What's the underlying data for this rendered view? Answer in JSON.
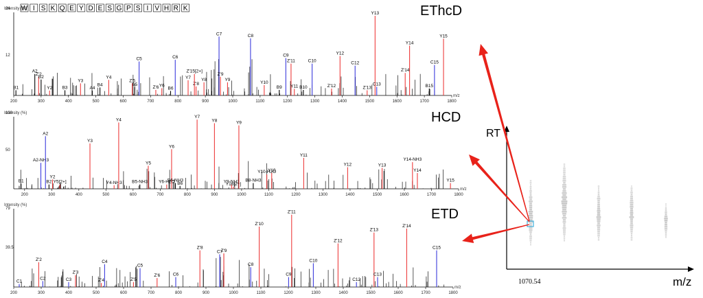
{
  "chart_data": [
    {
      "type": "bar",
      "title": "EThcD",
      "sequence": [
        "W",
        "I",
        "S",
        "K",
        "Q",
        "E",
        "Y",
        "D",
        "E",
        "S",
        "G",
        "P",
        "S",
        "I",
        "V",
        "H",
        "R",
        "K"
      ],
      "ylabel": "Intensity (%)",
      "xlabel": "m/z",
      "ytick_labels": [
        "24",
        "12"
      ],
      "xlim": [
        200,
        1800
      ],
      "ylim": [
        0,
        24
      ],
      "xticks": [
        200,
        300,
        400,
        500,
        600,
        700,
        800,
        900,
        1000,
        1100,
        1200,
        1300,
        1400,
        1500,
        1600,
        1700,
        1800
      ],
      "labeled_peaks": [
        {
          "label": "b1",
          "mz": 208,
          "y": 1.5,
          "color": "black"
        },
        {
          "label": "a2",
          "mz": 277,
          "y": 6.2,
          "color": "black"
        },
        {
          "label": "z'2",
          "mz": 291,
          "y": 5.4,
          "color": "red"
        },
        {
          "label": "b2",
          "mz": 300,
          "y": 4.6,
          "color": "black"
        },
        {
          "label": "y2",
          "mz": 331,
          "y": 1.4,
          "color": "red"
        },
        {
          "label": "b3",
          "mz": 387,
          "y": 1.5,
          "color": "black"
        },
        {
          "label": "y3",
          "mz": 444,
          "y": 3.5,
          "color": "red"
        },
        {
          "label": "a4",
          "mz": 487,
          "y": 1.4,
          "color": "black"
        },
        {
          "label": "b4",
          "mz": 515,
          "y": 2.3,
          "color": "black"
        },
        {
          "label": "y4",
          "mz": 547,
          "y": 4.5,
          "color": "red"
        },
        {
          "label": "b5",
          "mz": 642,
          "y": 2.4,
          "color": "black"
        },
        {
          "label": "z'5",
          "mz": 633,
          "y": 3.5,
          "color": "red"
        },
        {
          "label": "c5",
          "mz": 658,
          "y": 9.8,
          "color": "blue"
        },
        {
          "label": "z'6",
          "mz": 719,
          "y": 1.6,
          "color": "red"
        },
        {
          "label": "y6",
          "mz": 741,
          "y": 2.1,
          "color": "red"
        },
        {
          "label": "b6",
          "mz": 773,
          "y": 1.3,
          "color": "black"
        },
        {
          "label": "c6",
          "mz": 790,
          "y": 10.3,
          "color": "blue"
        },
        {
          "label": "y7",
          "mz": 837,
          "y": 4.4,
          "color": "red"
        },
        {
          "label": "z'8",
          "mz": 866,
          "y": 2.6,
          "color": "red"
        },
        {
          "label": "z'15[2+]",
          "mz": 860,
          "y": 6.2,
          "color": "red"
        },
        {
          "label": "y8",
          "mz": 895,
          "y": 3.8,
          "color": "red"
        },
        {
          "label": "c7",
          "mz": 950,
          "y": 17.0,
          "color": "blue"
        },
        {
          "label": "z'9",
          "mz": 955,
          "y": 5.4,
          "color": "red"
        },
        {
          "label": "y9",
          "mz": 981,
          "y": 3.8,
          "color": "red"
        },
        {
          "label": "c8",
          "mz": 1065,
          "y": 16.5,
          "color": "blue"
        },
        {
          "label": "y10",
          "mz": 1115,
          "y": 3.0,
          "color": "red"
        },
        {
          "label": "b9",
          "mz": 1170,
          "y": 1.6,
          "color": "black"
        },
        {
          "label": "c9",
          "mz": 1194,
          "y": 10.8,
          "color": "blue"
        },
        {
          "label": "z'11",
          "mz": 1213,
          "y": 9.2,
          "color": "red"
        },
        {
          "label": "y11",
          "mz": 1225,
          "y": 1.9,
          "color": "red"
        },
        {
          "label": "b10",
          "mz": 1258,
          "y": 1.6,
          "color": "black"
        },
        {
          "label": "c10",
          "mz": 1290,
          "y": 9.2,
          "color": "blue"
        },
        {
          "label": "z'12",
          "mz": 1361,
          "y": 2.0,
          "color": "red"
        },
        {
          "label": "y12",
          "mz": 1392,
          "y": 11.4,
          "color": "red"
        },
        {
          "label": "c12",
          "mz": 1447,
          "y": 8.6,
          "color": "blue"
        },
        {
          "label": "z'13",
          "mz": 1491,
          "y": 1.5,
          "color": "red"
        },
        {
          "label": "y13",
          "mz": 1520,
          "y": 23.0,
          "color": "red"
        },
        {
          "label": "c13",
          "mz": 1526,
          "y": 2.5,
          "color": "blue"
        },
        {
          "label": "z'14",
          "mz": 1630,
          "y": 6.5,
          "color": "red"
        },
        {
          "label": "y14",
          "mz": 1646,
          "y": 14.4,
          "color": "red"
        },
        {
          "label": "b15",
          "mz": 1718,
          "y": 2.0,
          "color": "black"
        },
        {
          "label": "c15",
          "mz": 1737,
          "y": 8.8,
          "color": "blue"
        },
        {
          "label": "y15",
          "mz": 1770,
          "y": 16.4,
          "color": "red"
        }
      ]
    },
    {
      "type": "bar",
      "title": "HCD",
      "ylabel": "Intensity (%)",
      "xlabel": "m/z",
      "ytick_labels": [
        "100",
        "50"
      ],
      "xlim": [
        160,
        1800
      ],
      "ylim": [
        0,
        100
      ],
      "xticks": [
        200,
        300,
        400,
        500,
        600,
        700,
        800,
        900,
        1000,
        1100,
        1200,
        1300,
        1400,
        1500,
        1600,
        1700,
        1800
      ],
      "labeled_peaks": [
        {
          "label": "b1",
          "mz": 187,
          "y": 7,
          "color": "black"
        },
        {
          "label": "a2-NH3",
          "mz": 260,
          "y": 36,
          "color": "blue"
        },
        {
          "label": "a2",
          "mz": 277,
          "y": 73,
          "color": "blue"
        },
        {
          "label": "b2",
          "mz": 290,
          "y": 6,
          "color": "black"
        },
        {
          "label": "y2",
          "mz": 303,
          "y": 13,
          "color": "red"
        },
        {
          "label": "y5[2+]",
          "mz": 330,
          "y": 6,
          "color": "red"
        },
        {
          "label": "y3",
          "mz": 441,
          "y": 63,
          "color": "red"
        },
        {
          "label": "y4-NH3",
          "mz": 530,
          "y": 5,
          "color": "red"
        },
        {
          "label": "y4",
          "mz": 547,
          "y": 92,
          "color": "red"
        },
        {
          "label": "b5-NH3",
          "mz": 625,
          "y": 6,
          "color": "black"
        },
        {
          "label": "y5",
          "mz": 656,
          "y": 32,
          "color": "red"
        },
        {
          "label": "y6-H2O",
          "mz": 724,
          "y": 6,
          "color": "red"
        },
        {
          "label": "y6",
          "mz": 742,
          "y": 55,
          "color": "red"
        },
        {
          "label": "b6-NH3",
          "mz": 756,
          "y": 8,
          "color": "black"
        },
        {
          "label": "b6",
          "mz": 773,
          "y": 4,
          "color": "black"
        },
        {
          "label": "y7",
          "mz": 836,
          "y": 96,
          "color": "red"
        },
        {
          "label": "y8",
          "mz": 900,
          "y": 91,
          "color": "red"
        },
        {
          "label": "y9-NH3",
          "mz": 963,
          "y": 6,
          "color": "red"
        },
        {
          "label": "y16[2+]",
          "mz": 970,
          "y": 3,
          "color": "red"
        },
        {
          "label": "y9",
          "mz": 990,
          "y": 88,
          "color": "red"
        },
        {
          "label": "b8-NH3",
          "mz": 1043,
          "y": 8,
          "color": "black"
        },
        {
          "label": "y10-H2O",
          "mz": 1093,
          "y": 20,
          "color": "red"
        },
        {
          "label": "y10",
          "mz": 1111,
          "y": 22,
          "color": "red"
        },
        {
          "label": "y11",
          "mz": 1229,
          "y": 43,
          "color": "red"
        },
        {
          "label": "y12",
          "mz": 1391,
          "y": 30,
          "color": "red"
        },
        {
          "label": "y13",
          "mz": 1518,
          "y": 29,
          "color": "red"
        },
        {
          "label": "y14-NH3",
          "mz": 1630,
          "y": 37,
          "color": "red"
        },
        {
          "label": "y14",
          "mz": 1648,
          "y": 22,
          "color": "red"
        },
        {
          "label": "y15",
          "mz": 1770,
          "y": 8,
          "color": "red"
        }
      ]
    },
    {
      "type": "bar",
      "title": "ETD",
      "ylabel": "Intensity (%)",
      "xlabel": "m/z",
      "ytick_labels": [
        "79",
        "39.5"
      ],
      "xlim": [
        200,
        1800
      ],
      "ylim": [
        0,
        79
      ],
      "xticks": [
        200,
        300,
        400,
        500,
        600,
        700,
        800,
        900,
        1000,
        1100,
        1200,
        1300,
        1400,
        1500,
        1600,
        1700,
        1800
      ],
      "labeled_peaks": [
        {
          "label": "c1",
          "mz": 220,
          "y": 3,
          "color": "blue"
        },
        {
          "label": "z'2",
          "mz": 291,
          "y": 25,
          "color": "red"
        },
        {
          "label": "c2",
          "mz": 306,
          "y": 6,
          "color": "blue"
        },
        {
          "label": "c3",
          "mz": 400,
          "y": 5,
          "color": "blue"
        },
        {
          "label": "z'3",
          "mz": 425,
          "y": 12,
          "color": "red"
        },
        {
          "label": "z'4",
          "mz": 519,
          "y": 4,
          "color": "red"
        },
        {
          "label": "c4",
          "mz": 531,
          "y": 23,
          "color": "blue"
        },
        {
          "label": "z'5",
          "mz": 636,
          "y": 5,
          "color": "red"
        },
        {
          "label": "c5",
          "mz": 660,
          "y": 19,
          "color": "blue"
        },
        {
          "label": "z'6",
          "mz": 722,
          "y": 9,
          "color": "red"
        },
        {
          "label": "c6",
          "mz": 790,
          "y": 10,
          "color": "blue"
        },
        {
          "label": "z'8",
          "mz": 878,
          "y": 37,
          "color": "red"
        },
        {
          "label": "c7",
          "mz": 950,
          "y": 33,
          "color": "blue"
        },
        {
          "label": "z'9",
          "mz": 965,
          "y": 34,
          "color": "red"
        },
        {
          "label": "c8",
          "mz": 1063,
          "y": 20,
          "color": "blue"
        },
        {
          "label": "z'10",
          "mz": 1094,
          "y": 61,
          "color": "red"
        },
        {
          "label": "c9",
          "mz": 1201,
          "y": 10,
          "color": "blue"
        },
        {
          "label": "z'11",
          "mz": 1212,
          "y": 73,
          "color": "red"
        },
        {
          "label": "c10",
          "mz": 1291,
          "y": 24,
          "color": "blue"
        },
        {
          "label": "z'12",
          "mz": 1381,
          "y": 44,
          "color": "red"
        },
        {
          "label": "c12",
          "mz": 1448,
          "y": 5,
          "color": "blue"
        },
        {
          "label": "z'13",
          "mz": 1512,
          "y": 55,
          "color": "red"
        },
        {
          "label": "c13",
          "mz": 1525,
          "y": 10,
          "color": "blue"
        },
        {
          "label": "z'14",
          "mz": 1631,
          "y": 59,
          "color": "red"
        },
        {
          "label": "c15",
          "mz": 1740,
          "y": 37,
          "color": "blue"
        }
      ]
    },
    {
      "type": "heatmap",
      "title": "",
      "xlabel": "m/z",
      "ylabel": "RT",
      "precursor_mz_label": "1070.54",
      "precursor_marker_color": "#2fa8d8",
      "isotope_traces": 5
    }
  ],
  "colors": {
    "red": "#ee3b3b",
    "blue": "#3b3bdd",
    "black": "#000000",
    "arrow": "#e8221a",
    "trace": "#c8c8c8"
  }
}
